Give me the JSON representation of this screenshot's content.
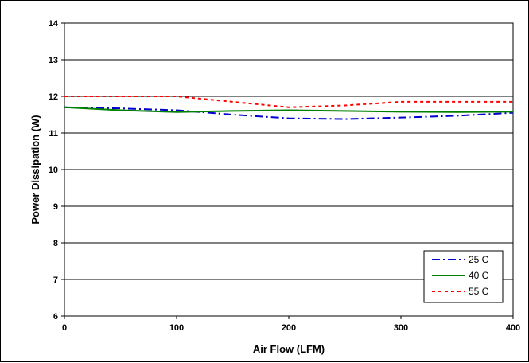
{
  "chart_data": {
    "type": "line",
    "title": "",
    "xlabel": "Air Flow (LFM)",
    "ylabel": "Power Dissipation (W)",
    "xlim": [
      0,
      400
    ],
    "ylim": [
      6,
      14
    ],
    "xticks": [
      0,
      100,
      200,
      300,
      400
    ],
    "yticks": [
      6,
      7,
      8,
      9,
      10,
      11,
      12,
      13,
      14
    ],
    "grid": "horizontal",
    "legend_position": "bottom-right",
    "series": [
      {
        "name": "25 C",
        "color": "#0000CC",
        "dash": "dash-dot",
        "x": [
          0,
          50,
          100,
          150,
          200,
          250,
          300,
          350,
          400
        ],
        "y": [
          11.7,
          11.67,
          11.62,
          11.5,
          11.4,
          11.38,
          11.42,
          11.47,
          11.55
        ]
      },
      {
        "name": "40 C",
        "color": "#008000",
        "dash": "solid",
        "x": [
          0,
          50,
          100,
          150,
          200,
          250,
          300,
          350,
          400
        ],
        "y": [
          11.7,
          11.62,
          11.57,
          11.6,
          11.62,
          11.6,
          11.58,
          11.57,
          11.58
        ]
      },
      {
        "name": "55 C",
        "color": "#FF0000",
        "dash": "dotted",
        "x": [
          0,
          50,
          100,
          150,
          200,
          250,
          300,
          350,
          400
        ],
        "y": [
          12.0,
          12.0,
          12.0,
          11.85,
          11.7,
          11.75,
          11.85,
          11.85,
          11.85
        ]
      }
    ]
  }
}
